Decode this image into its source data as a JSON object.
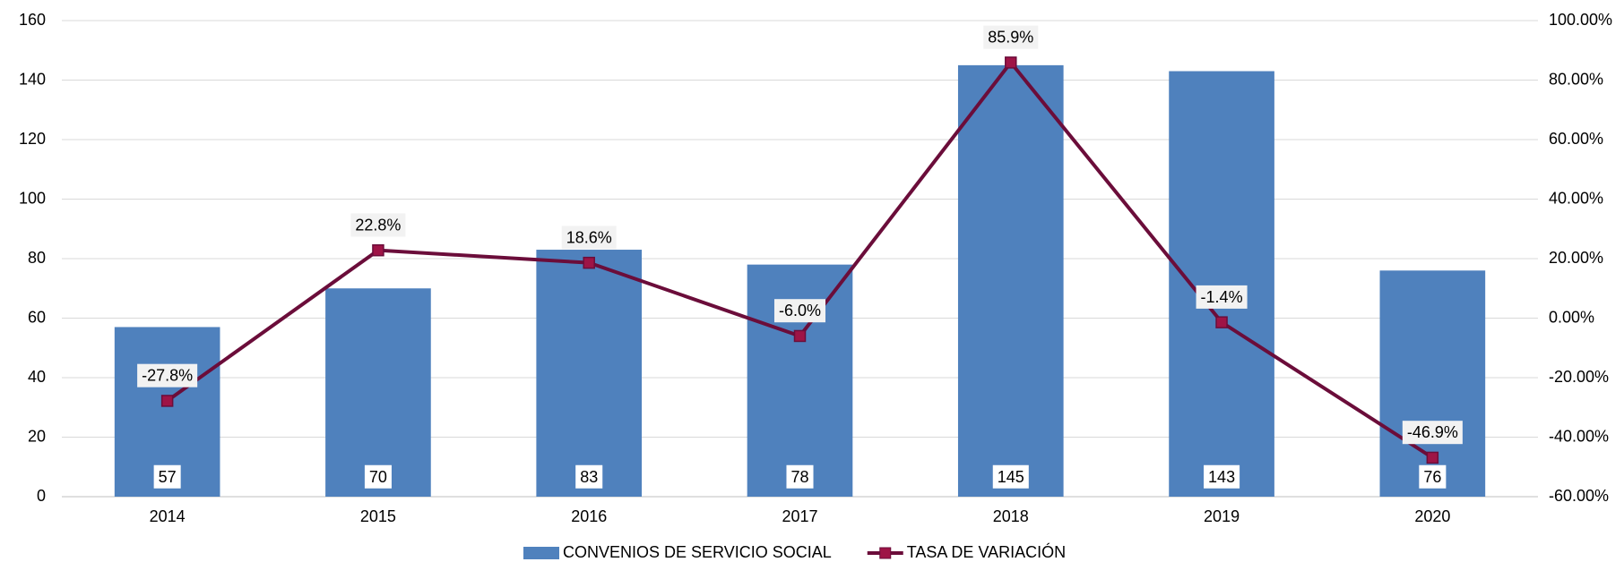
{
  "chart_data": {
    "type": "bar",
    "categories": [
      "2014",
      "2015",
      "2016",
      "2017",
      "2018",
      "2019",
      "2020"
    ],
    "series": [
      {
        "name": "CONVENIOS DE SERVICIO SOCIAL",
        "type": "bar",
        "color": "#4f81bd",
        "values": [
          57,
          70,
          83,
          78,
          145,
          143,
          76
        ]
      },
      {
        "name": "TASA DE VARIACIÓN",
        "type": "line",
        "axis": "y2",
        "color": "#6b0d3a",
        "marker_color": "#9e1446",
        "values": [
          -27.8,
          22.8,
          18.6,
          -6.0,
          85.9,
          -1.4,
          -46.9
        ],
        "value_labels": [
          "-27.8%",
          "22.8%",
          "18.6%",
          "-6.0%",
          "85.9%",
          "-1.4%",
          "-46.9%"
        ]
      }
    ],
    "ylim": [
      0,
      160
    ],
    "yticks": [
      0,
      20,
      40,
      60,
      80,
      100,
      120,
      140,
      160
    ],
    "y2lim": [
      -60,
      100
    ],
    "y2ticks": [
      {
        "value": -60,
        "label": "-60.00%"
      },
      {
        "value": -40,
        "label": "-40.00%"
      },
      {
        "value": -20,
        "label": "-20.00%"
      },
      {
        "value": 0,
        "label": "0.00%"
      },
      {
        "value": 20,
        "label": "20.00%"
      },
      {
        "value": 40,
        "label": "40.00%"
      },
      {
        "value": 60,
        "label": "60.00%"
      },
      {
        "value": 80,
        "label": "80.00%"
      },
      {
        "value": 100,
        "label": "100.00%"
      }
    ],
    "grid": true,
    "legend": "bottom"
  }
}
